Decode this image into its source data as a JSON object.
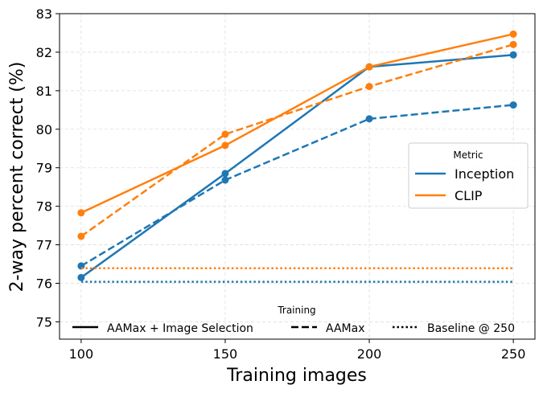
{
  "chart_data": {
    "type": "line",
    "xlabel": "Training images",
    "ylabel": "2-way percent correct (%)",
    "x": [
      100,
      150,
      200,
      250
    ],
    "xticks": [
      100,
      150,
      200,
      250
    ],
    "yticks": [
      75,
      76,
      77,
      78,
      79,
      80,
      81,
      82,
      83
    ],
    "xlim": [
      92.5,
      257.5
    ],
    "ylim": [
      74.55,
      83
    ],
    "grid": true,
    "colors": {
      "Inception": "#1f77b4",
      "CLIP": "#ff7f0e"
    },
    "series": [
      {
        "name": "Inception",
        "style": "AAMax + Image Selection",
        "values": [
          76.15,
          78.85,
          81.62,
          81.93
        ]
      },
      {
        "name": "Inception",
        "style": "AAMax",
        "values": [
          76.45,
          78.68,
          80.27,
          80.63
        ]
      },
      {
        "name": "Inception",
        "style": "Baseline @ 250",
        "values": [
          76.04,
          76.04,
          76.04,
          76.04
        ]
      },
      {
        "name": "CLIP",
        "style": "AAMax + Image Selection",
        "values": [
          77.83,
          79.58,
          81.62,
          82.47
        ]
      },
      {
        "name": "CLIP",
        "style": "AAMax",
        "values": [
          77.22,
          79.87,
          81.11,
          82.2
        ]
      },
      {
        "name": "CLIP",
        "style": "Baseline @ 250",
        "values": [
          76.39,
          76.39,
          76.39,
          76.39
        ]
      }
    ],
    "legend_metric": {
      "title": "Metric",
      "position": "center-right",
      "entries": [
        "Inception",
        "CLIP"
      ]
    },
    "legend_training": {
      "title": "Training",
      "position": "lower-center",
      "entries": [
        "AAMax + Image Selection",
        "AAMax",
        "Baseline @ 250"
      ]
    }
  }
}
